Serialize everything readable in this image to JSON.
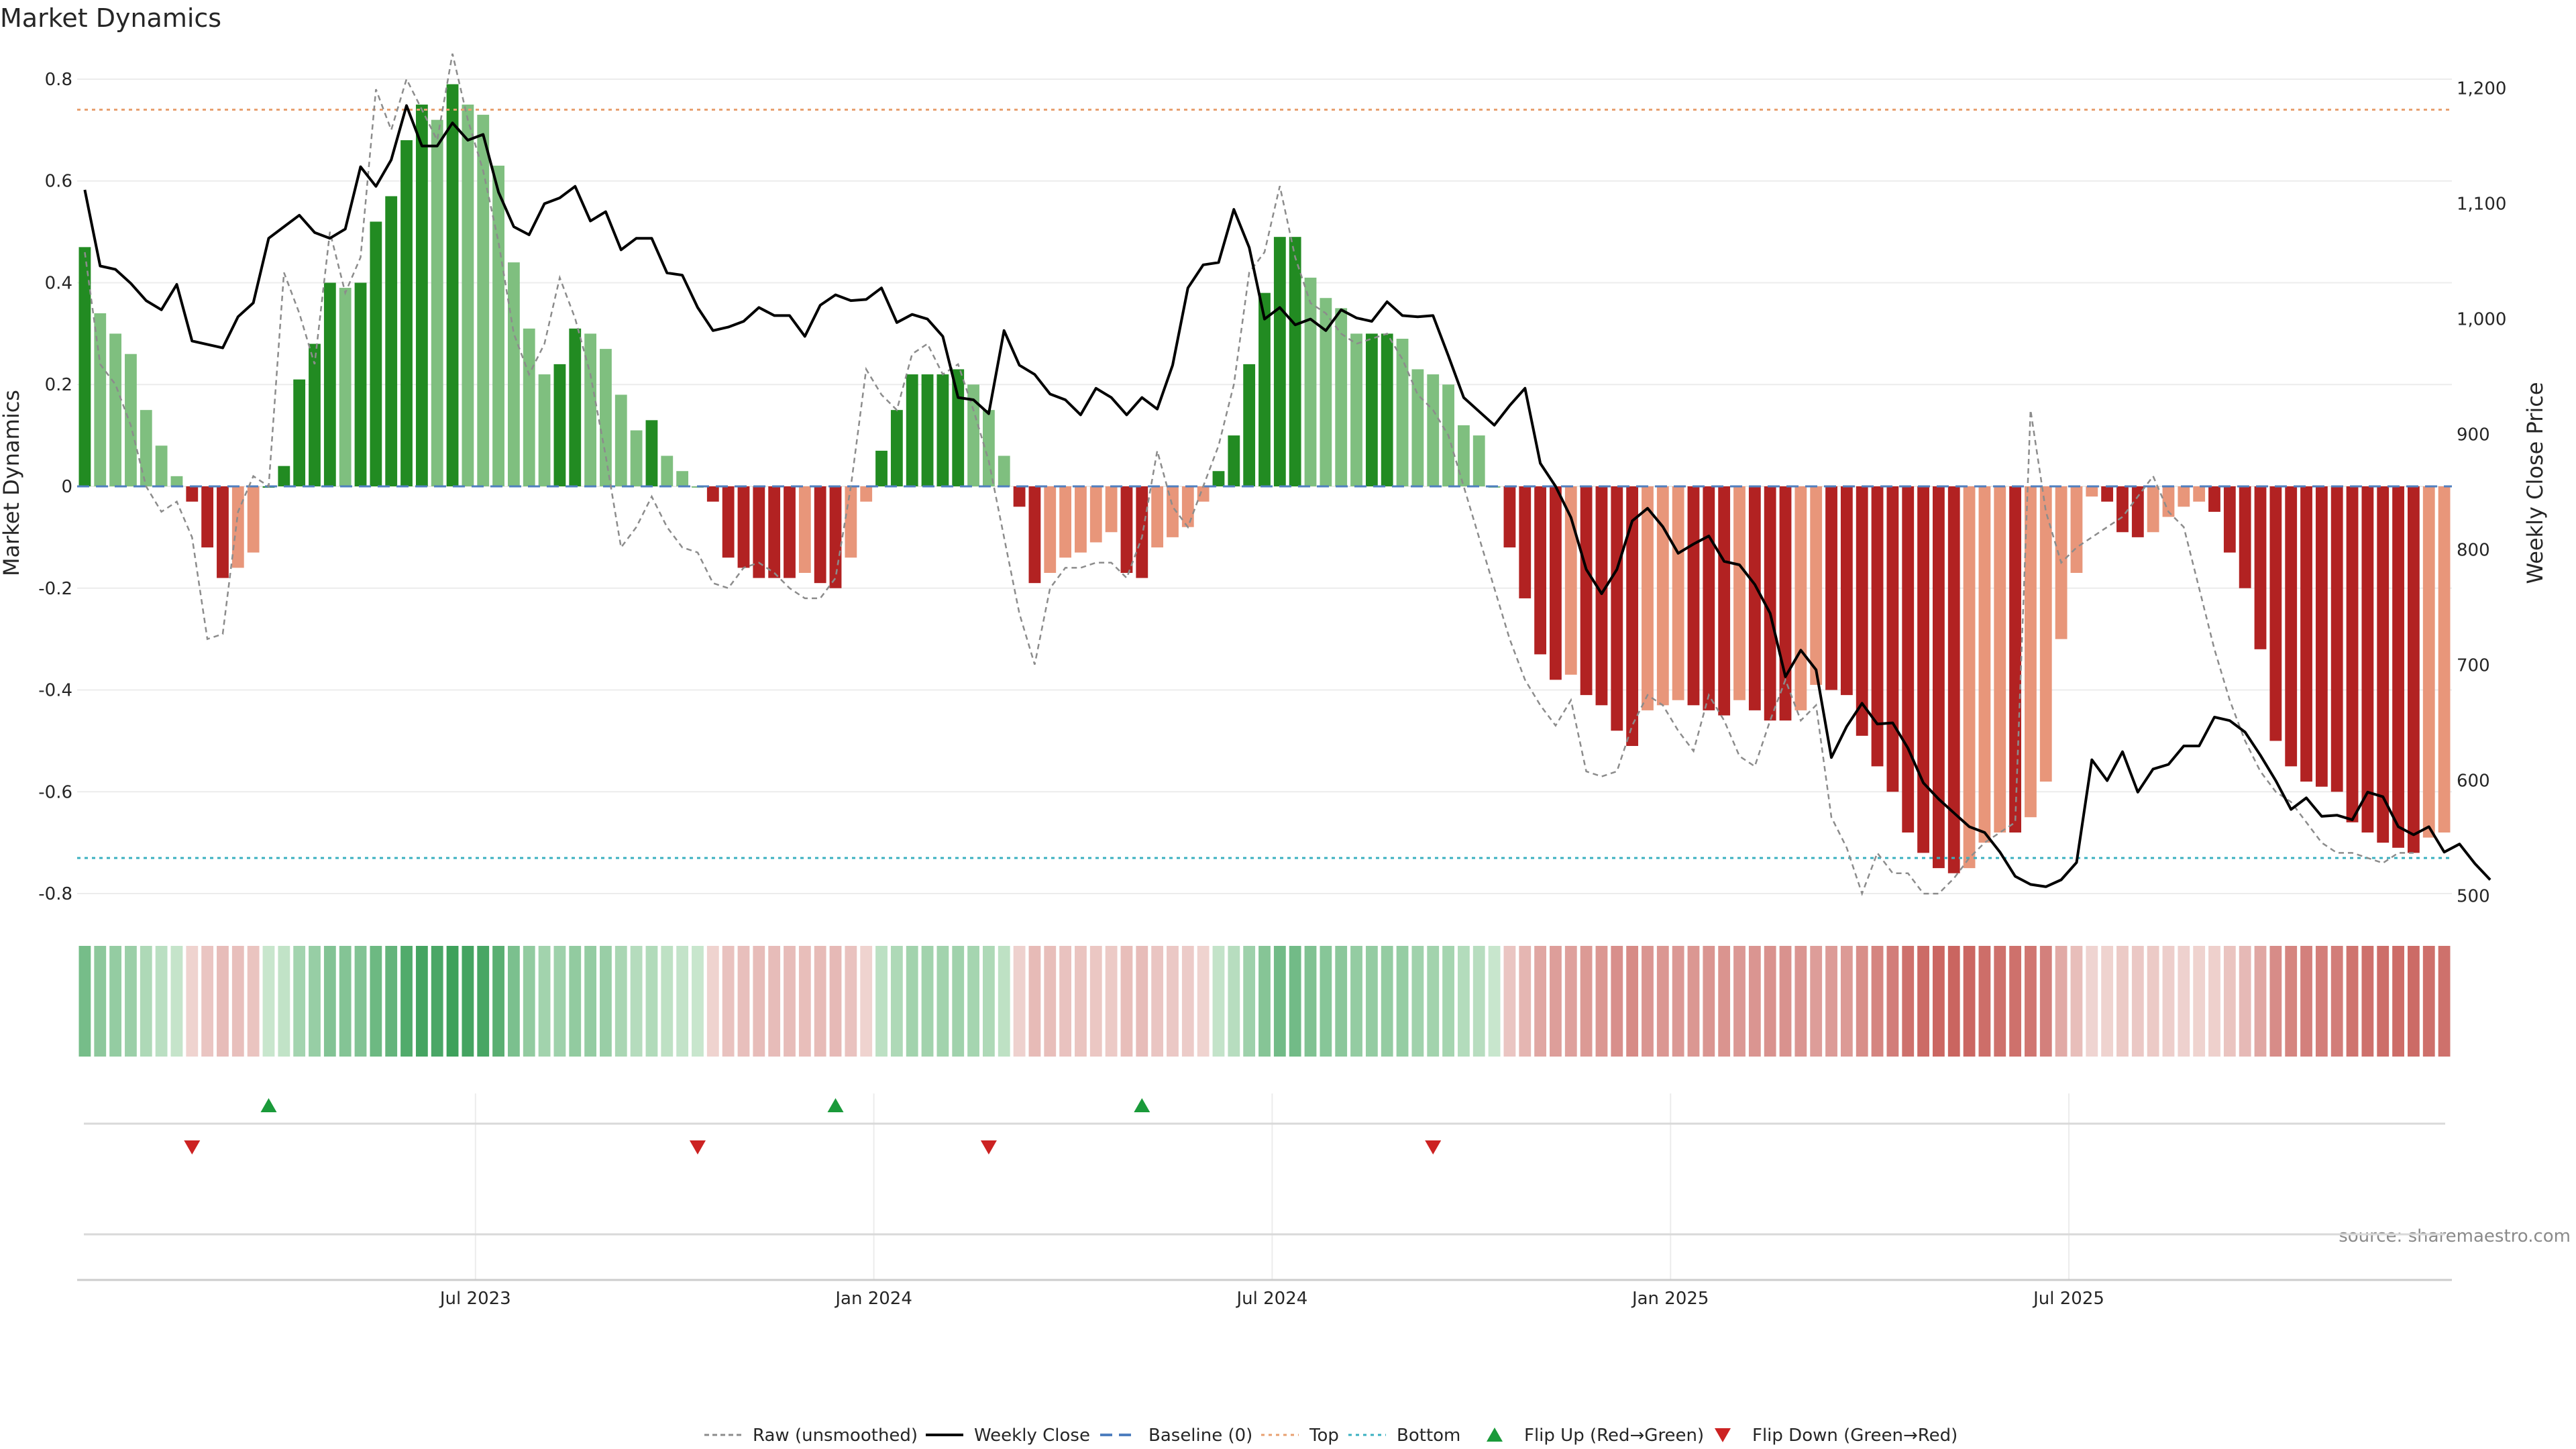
{
  "chart_data": {
    "type": "bar",
    "title": "Market Dynamics",
    "ylabel": "Market Dynamics",
    "y2label": "Weekly Close Price",
    "ylim": [
      -0.85,
      0.85
    ],
    "y2lim": [
      480,
      1230
    ],
    "yticks": [
      "0.8",
      "0.6",
      "0.4",
      "0.2",
      "0",
      "-0.2",
      "-0.4",
      "-0.6",
      "-0.8"
    ],
    "y2ticks": [
      "1,200",
      "1,100",
      "1,000",
      "900",
      "800",
      "700",
      "600",
      "500"
    ],
    "xticks": [
      "Jul 2023",
      "Jan 2024",
      "Jul 2024",
      "Jan 2025",
      "Jul 2025"
    ],
    "top_line": 0.74,
    "bottom_line": -0.73,
    "grid": true,
    "legend_position": "bottom-center",
    "source": "source: sharemaestro.com",
    "colors": {
      "strong_up": "#228b22",
      "weak_up": "#7fbf7f",
      "strong_down": "#b22222",
      "weak_down": "#e8967a",
      "close_line": "#000000",
      "raw_line": "#8c8c8c",
      "baseline": "#4f7fbf",
      "top": "#e8a070",
      "bottom": "#3ab0c0",
      "flip_up": "#1a9a3a",
      "flip_down": "#cc2222"
    },
    "series": [
      {
        "name": "Market Dynamics",
        "values": [
          0.47,
          0.34,
          0.3,
          0.26,
          0.15,
          0.08,
          0.02,
          -0.03,
          -0.12,
          -0.18,
          -0.16,
          -0.13,
          0.0,
          0.04,
          0.21,
          0.28,
          0.4,
          0.39,
          0.4,
          0.52,
          0.57,
          0.68,
          0.75,
          0.72,
          0.79,
          0.75,
          0.73,
          0.63,
          0.44,
          0.31,
          0.22,
          0.24,
          0.31,
          0.3,
          0.27,
          0.18,
          0.11,
          0.13,
          0.06,
          0.03,
          0.0,
          -0.03,
          -0.14,
          -0.16,
          -0.18,
          -0.18,
          -0.18,
          -0.17,
          -0.19,
          -0.2,
          -0.14,
          -0.03,
          0.07,
          0.15,
          0.22,
          0.22,
          0.22,
          0.23,
          0.2,
          0.15,
          0.06,
          -0.04,
          -0.19,
          -0.17,
          -0.14,
          -0.13,
          -0.11,
          -0.09,
          -0.17,
          -0.18,
          -0.12,
          -0.1,
          -0.08,
          -0.03,
          0.03,
          0.1,
          0.24,
          0.38,
          0.49,
          0.49,
          0.41,
          0.37,
          0.35,
          0.3,
          0.3,
          0.3,
          0.29,
          0.23,
          0.22,
          0.2,
          0.12,
          0.1,
          0.0,
          -0.12,
          -0.22,
          -0.33,
          -0.38,
          -0.37,
          -0.41,
          -0.43,
          -0.48,
          -0.51,
          -0.44,
          -0.43,
          -0.42,
          -0.43,
          -0.44,
          -0.45,
          -0.42,
          -0.44,
          -0.46,
          -0.46,
          -0.44,
          -0.39,
          -0.4,
          -0.41,
          -0.49,
          -0.55,
          -0.6,
          -0.68,
          -0.72,
          -0.75,
          -0.76,
          -0.75,
          -0.7,
          -0.68,
          -0.68,
          -0.65,
          -0.58,
          -0.3,
          -0.17,
          -0.02,
          -0.03,
          -0.09,
          -0.1,
          -0.09,
          -0.06,
          -0.04,
          -0.03,
          -0.05,
          -0.13,
          -0.2,
          -0.32,
          -0.5,
          -0.55,
          -0.58,
          -0.59,
          -0.6,
          -0.66,
          -0.68,
          -0.7,
          -0.71,
          -0.72,
          -0.69,
          -0.68
        ]
      },
      {
        "name": "Raw (unsmoothed)",
        "values": [
          0.46,
          0.24,
          0.2,
          0.12,
          0.0,
          -0.05,
          -0.03,
          -0.1,
          -0.3,
          -0.29,
          -0.05,
          0.02,
          0.0,
          0.42,
          0.34,
          0.24,
          0.5,
          0.38,
          0.45,
          0.78,
          0.7,
          0.8,
          0.74,
          0.68,
          0.85,
          0.72,
          0.62,
          0.48,
          0.3,
          0.22,
          0.28,
          0.41,
          0.33,
          0.22,
          0.06,
          -0.12,
          -0.08,
          -0.02,
          -0.08,
          -0.12,
          -0.13,
          -0.19,
          -0.2,
          -0.16,
          -0.15,
          -0.17,
          -0.2,
          -0.22,
          -0.22,
          -0.18,
          0.0,
          0.23,
          0.18,
          0.15,
          0.26,
          0.28,
          0.22,
          0.24,
          0.15,
          0.05,
          -0.1,
          -0.25,
          -0.35,
          -0.2,
          -0.16,
          -0.16,
          -0.15,
          -0.15,
          -0.18,
          -0.1,
          0.07,
          -0.04,
          -0.08,
          0.0,
          0.08,
          0.2,
          0.42,
          0.46,
          0.59,
          0.45,
          0.36,
          0.34,
          0.3,
          0.28,
          0.29,
          0.3,
          0.25,
          0.18,
          0.15,
          0.1,
          0.0,
          -0.1,
          -0.2,
          -0.3,
          -0.38,
          -0.43,
          -0.47,
          -0.42,
          -0.56,
          -0.57,
          -0.56,
          -0.47,
          -0.41,
          -0.43,
          -0.48,
          -0.52,
          -0.41,
          -0.46,
          -0.53,
          -0.55,
          -0.46,
          -0.38,
          -0.46,
          -0.43,
          -0.65,
          -0.71,
          -0.8,
          -0.72,
          -0.76,
          -0.76,
          -0.8,
          -0.8,
          -0.77,
          -0.73,
          -0.7,
          -0.68,
          -0.66,
          0.15,
          -0.05,
          -0.15,
          -0.12,
          -0.1,
          -0.08,
          -0.06,
          -0.02,
          0.02,
          -0.05,
          -0.08,
          -0.2,
          -0.32,
          -0.42,
          -0.5,
          -0.56,
          -0.6,
          -0.62,
          -0.66,
          -0.7,
          -0.72,
          -0.72,
          -0.73,
          -0.74,
          -0.72,
          -0.72
        ]
      },
      {
        "name": "Weekly Close",
        "values": [
          1112,
          1046,
          1043,
          1031,
          1016,
          1008,
          1030,
          981,
          978,
          975,
          1002,
          1014,
          1070,
          1080,
          1090,
          1075,
          1070,
          1078,
          1132,
          1115,
          1138,
          1185,
          1150,
          1150,
          1170,
          1155,
          1160,
          1110,
          1080,
          1073,
          1100,
          1105,
          1115,
          1085,
          1093,
          1060,
          1070,
          1070,
          1040,
          1038,
          1010,
          990,
          993,
          998,
          1010,
          1003,
          1003,
          985,
          1012,
          1021,
          1016,
          1017,
          1027,
          997,
          1004,
          1000,
          985,
          932,
          930,
          918,
          990,
          960,
          952,
          935,
          930,
          917,
          940,
          932,
          917,
          932,
          922,
          960,
          1027,
          1047,
          1049,
          1095,
          1062,
          1000,
          1010,
          995,
          1000,
          990,
          1008,
          1001,
          998,
          1015,
          1003,
          1002,
          1003,
          968,
          932,
          920,
          908,
          925,
          940,
          875,
          855,
          828,
          783,
          762,
          783,
          825,
          836,
          820,
          797,
          805,
          812,
          790,
          787,
          770,
          745,
          690,
          713,
          696,
          620,
          647,
          667,
          649,
          650,
          628,
          598,
          584,
          572,
          560,
          555,
          538,
          517,
          510,
          508,
          514,
          529,
          618,
          600,
          625,
          590,
          610,
          614,
          630,
          630,
          655,
          652,
          642,
          622,
          600,
          575,
          585,
          569,
          570,
          566,
          590,
          586,
          560,
          553,
          560,
          538,
          545,
          528,
          514
        ]
      }
    ],
    "heat_strip": [
      0.47,
      0.34,
      0.3,
      0.26,
      0.15,
      0.08,
      0.02,
      -0.03,
      -0.12,
      -0.18,
      -0.16,
      -0.13,
      0.0,
      0.04,
      0.21,
      0.28,
      0.4,
      0.39,
      0.4,
      0.52,
      0.57,
      0.68,
      0.75,
      0.72,
      0.79,
      0.75,
      0.73,
      0.63,
      0.44,
      0.31,
      0.22,
      0.24,
      0.31,
      0.3,
      0.27,
      0.18,
      0.11,
      0.13,
      0.06,
      0.03,
      0.0,
      -0.03,
      -0.14,
      -0.16,
      -0.18,
      -0.18,
      -0.18,
      -0.17,
      -0.19,
      -0.2,
      -0.14,
      -0.03,
      0.07,
      0.15,
      0.22,
      0.22,
      0.22,
      0.23,
      0.2,
      0.15,
      0.06,
      -0.04,
      -0.19,
      -0.17,
      -0.14,
      -0.13,
      -0.11,
      -0.09,
      -0.17,
      -0.18,
      -0.12,
      -0.1,
      -0.08,
      -0.03,
      0.03,
      0.1,
      0.24,
      0.38,
      0.49,
      0.49,
      0.41,
      0.37,
      0.35,
      0.3,
      0.3,
      0.3,
      0.29,
      0.23,
      0.22,
      0.2,
      0.12,
      0.1,
      0.0,
      -0.12,
      -0.22,
      -0.33,
      -0.38,
      -0.37,
      -0.41,
      -0.43,
      -0.48,
      -0.51,
      -0.44,
      -0.43,
      -0.42,
      -0.43,
      -0.44,
      -0.45,
      -0.42,
      -0.44,
      -0.46,
      -0.46,
      -0.44,
      -0.39,
      -0.4,
      -0.41,
      -0.49,
      -0.55,
      -0.6,
      -0.68,
      -0.72,
      -0.75,
      -0.76,
      -0.75,
      -0.7,
      -0.68,
      -0.68,
      -0.65,
      -0.58,
      -0.3,
      -0.17,
      -0.02,
      -0.03,
      -0.09,
      -0.1,
      -0.09,
      -0.06,
      -0.04,
      -0.03,
      -0.05,
      -0.13,
      -0.2,
      -0.32,
      -0.5,
      -0.55,
      -0.58,
      -0.59,
      -0.6,
      -0.66,
      -0.68,
      -0.7,
      -0.71,
      -0.72,
      -0.69,
      -0.68
    ],
    "flip_up_weeks": [
      12,
      49,
      69
    ],
    "flip_down_weeks": [
      7,
      40,
      59,
      88
    ],
    "legend": [
      {
        "label": "Raw (unsmoothed)",
        "style": "raw"
      },
      {
        "label": "Weekly Close",
        "style": "close"
      },
      {
        "label": "Baseline (0)",
        "style": "baseline"
      },
      {
        "label": "Top",
        "style": "top"
      },
      {
        "label": "Bottom",
        "style": "bottom"
      },
      {
        "label": "Flip Up (Red→Green)",
        "style": "flip_up"
      },
      {
        "label": "Flip Down (Green→Red)",
        "style": "flip_down"
      }
    ]
  }
}
